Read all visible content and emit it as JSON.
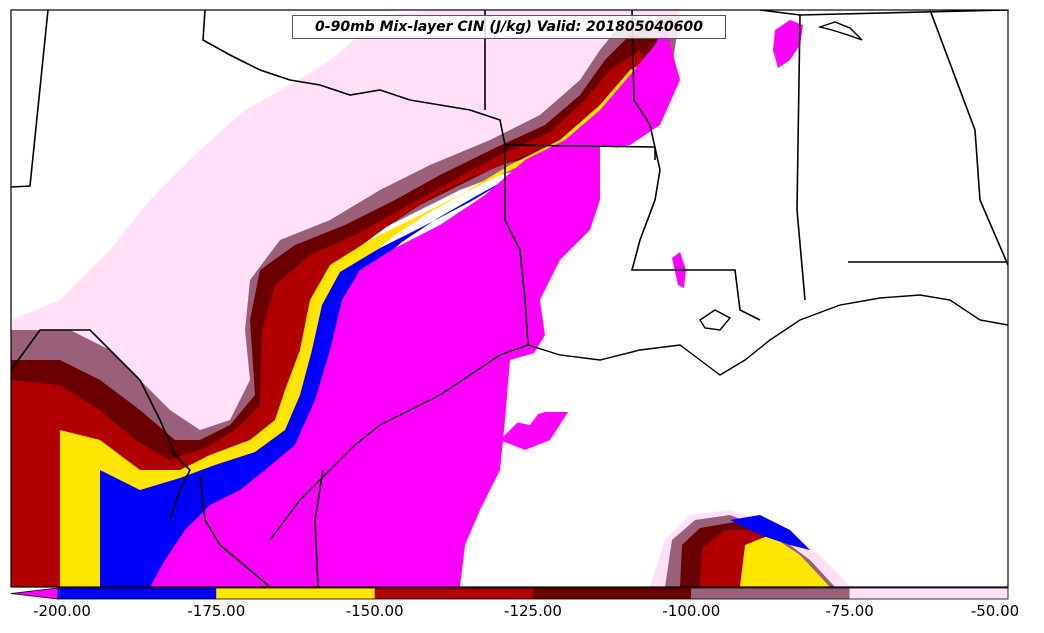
{
  "title": "0-90mb Mix-layer CIN (J/kg) Valid: 201805040600",
  "colorbar": {
    "ticks": [
      "-200.00",
      "-175.00",
      "-150.00",
      "-125.00",
      "-100.00",
      "-75.00",
      "-50.00"
    ],
    "bins": [
      {
        "from": -200,
        "to": -175,
        "color": "#0000ff"
      },
      {
        "from": -175,
        "to": -150,
        "color": "#ffe600"
      },
      {
        "from": -150,
        "to": -125,
        "color": "#b00000"
      },
      {
        "from": -125,
        "to": -100,
        "color": "#6a0000"
      },
      {
        "from": -100,
        "to": -75,
        "color": "#9b6079"
      },
      {
        "from": -75,
        "to": -50,
        "color": "#ffe0f8"
      }
    ],
    "under_color": "#ff00ff"
  },
  "colors": {
    "magenta": "#ff00ff",
    "blue": "#0000ff",
    "yellow": "#ffe600",
    "red": "#b00000",
    "dark_red": "#6a0000",
    "mauve": "#9b6079",
    "pink": "#ffe0f8",
    "land": "#ffffff",
    "border": "#000000"
  }
}
